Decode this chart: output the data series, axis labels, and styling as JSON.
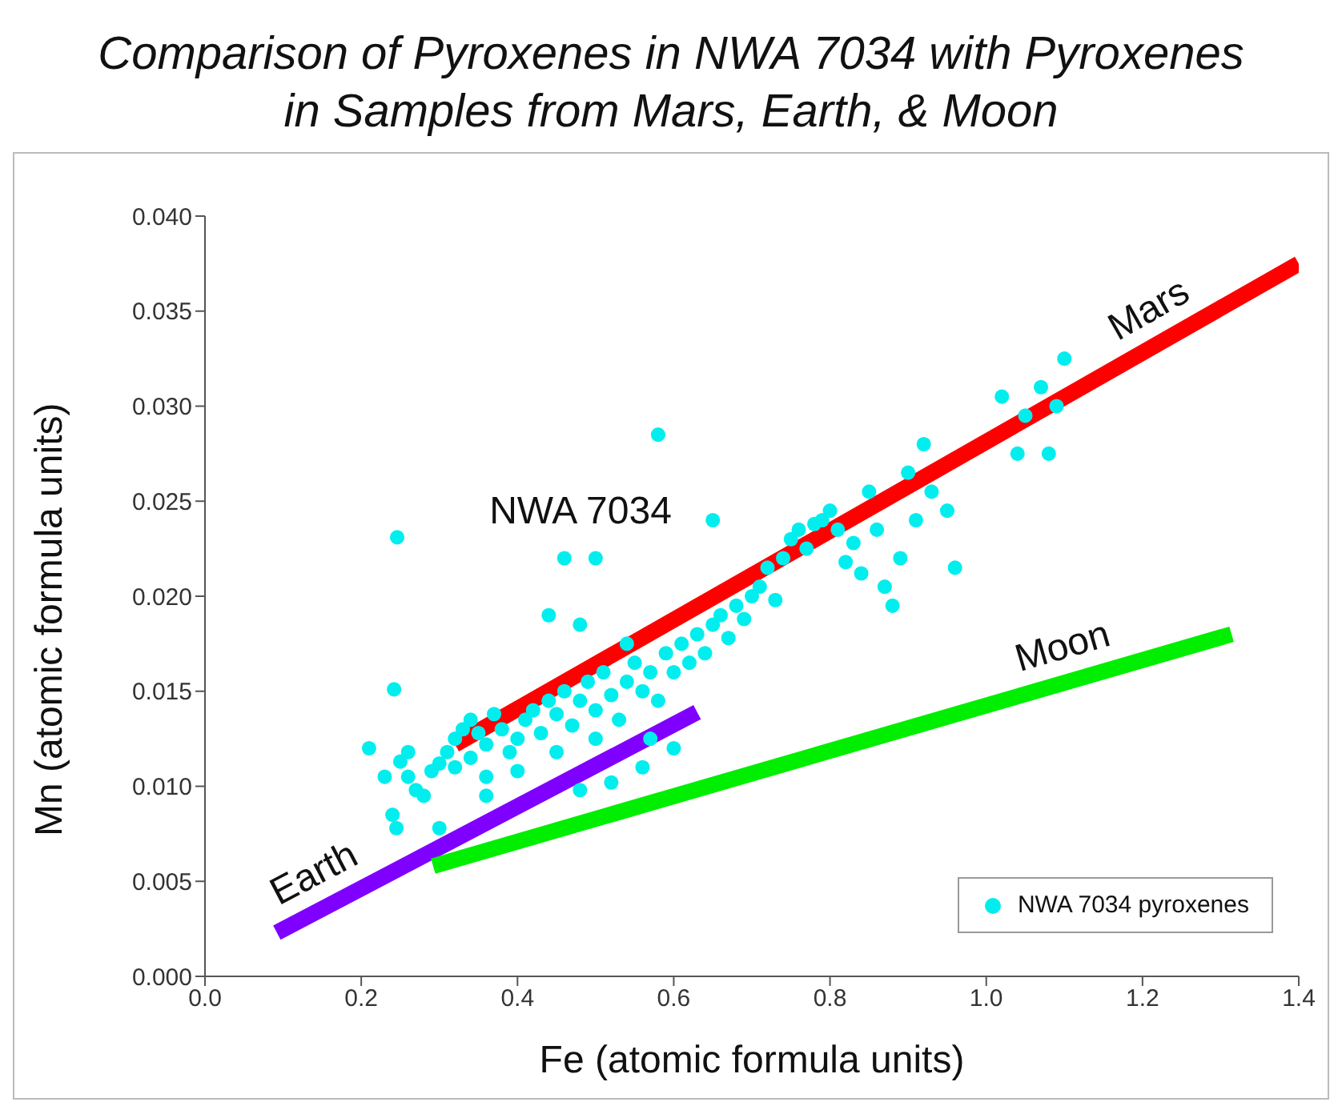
{
  "chart_data": {
    "type": "scatter",
    "title": "Comparison of Pyroxenes in NWA 7034 with Pyroxenes in Samples from Mars, Earth, & Moon",
    "xlabel": "Fe (atomic formula units)",
    "ylabel": "Mn (atomic formula units)",
    "xlim": [
      0,
      1.4
    ],
    "ylim": [
      0,
      0.04
    ],
    "xticks": [
      {
        "value": 0,
        "label": "0.0"
      },
      0.2,
      0.4,
      0.6,
      0.8,
      {
        "value": 1,
        "label": "1.0"
      },
      1.2,
      1.4
    ],
    "yticks": [
      {
        "value": 0,
        "label": "0.000"
      },
      0.005,
      {
        "value": 0.01,
        "label": "0.010"
      },
      0.015,
      {
        "value": 0.02,
        "label": "0.020"
      },
      0.025,
      {
        "value": 0.03,
        "label": "0.030"
      },
      0.035,
      {
        "value": 0.04,
        "label": "0.040"
      }
    ],
    "grid": false,
    "legend": "bottom right",
    "marker": "circle",
    "series": [
      {
        "type": "line",
        "marker": "none",
        "color": "#ff0000",
        "x": [
          0.32,
          1.4
        ],
        "values": [
          0.0122,
          0.0375
        ]
      },
      {
        "type": "line",
        "marker": "none",
        "color": "#7f00ff",
        "x": [
          0.092,
          0.63
        ],
        "values": [
          0.0023,
          0.0139
        ]
      },
      {
        "type": "line",
        "marker": "none",
        "color": "#00ee00",
        "x": [
          0.292,
          1.314
        ],
        "values": [
          0.0058,
          0.018
        ]
      },
      {
        "type": "scatter",
        "name": "NWA 7034 pyroxenes",
        "color": "#00eeee",
        "x": [
          0.21,
          0.23,
          0.24,
          0.245,
          0.25,
          0.26,
          0.27,
          0.26,
          0.28,
          0.29,
          0.3,
          0.31,
          0.32,
          0.33,
          0.32,
          0.34,
          0.35,
          0.34,
          0.36,
          0.37,
          0.38,
          0.36,
          0.39,
          0.4,
          0.41,
          0.42,
          0.4,
          0.43,
          0.44,
          0.45,
          0.46,
          0.47,
          0.45,
          0.48,
          0.49,
          0.5,
          0.5,
          0.51,
          0.52,
          0.53,
          0.54,
          0.55,
          0.56,
          0.57,
          0.58,
          0.59,
          0.6,
          0.61,
          0.62,
          0.63,
          0.64,
          0.65,
          0.66,
          0.67,
          0.68,
          0.69,
          0.7,
          0.71,
          0.72,
          0.73,
          0.74,
          0.75,
          0.76,
          0.77,
          0.78,
          0.79,
          0.8,
          0.81,
          0.82,
          0.83,
          0.84,
          0.85,
          0.86,
          0.87,
          0.88,
          0.89,
          0.9,
          0.91,
          0.92,
          0.93,
          0.95,
          0.96,
          1.02,
          1.04,
          1.05,
          1.07,
          1.08,
          1.1,
          1.09,
          0.246,
          0.242,
          0.58,
          0.46,
          0.5,
          0.44,
          0.48,
          0.65,
          0.54,
          0.52,
          0.48,
          0.36,
          0.3,
          0.56,
          0.6,
          0.57
        ],
        "values": [
          0.012,
          0.0105,
          0.0085,
          0.0078,
          0.0113,
          0.0118,
          0.0098,
          0.0105,
          0.0095,
          0.0108,
          0.0112,
          0.0118,
          0.0125,
          0.013,
          0.011,
          0.0135,
          0.0128,
          0.0115,
          0.0122,
          0.0138,
          0.013,
          0.0105,
          0.0118,
          0.0125,
          0.0135,
          0.014,
          0.0108,
          0.0128,
          0.0145,
          0.0138,
          0.015,
          0.0132,
          0.0118,
          0.0145,
          0.0155,
          0.014,
          0.0125,
          0.016,
          0.0148,
          0.0135,
          0.0155,
          0.0165,
          0.015,
          0.016,
          0.0145,
          0.017,
          0.016,
          0.0175,
          0.0165,
          0.018,
          0.017,
          0.0185,
          0.019,
          0.0178,
          0.0195,
          0.0188,
          0.02,
          0.0205,
          0.0215,
          0.0198,
          0.022,
          0.023,
          0.0235,
          0.0225,
          0.0238,
          0.024,
          0.0245,
          0.0235,
          0.0218,
          0.0228,
          0.0212,
          0.0255,
          0.0235,
          0.0205,
          0.0195,
          0.022,
          0.0265,
          0.024,
          0.028,
          0.0255,
          0.0245,
          0.0215,
          0.0305,
          0.0275,
          0.0295,
          0.031,
          0.0275,
          0.0325,
          0.03,
          0.0231,
          0.0151,
          0.0285,
          0.022,
          0.022,
          0.019,
          0.0185,
          0.024,
          0.0175,
          0.0102,
          0.0098,
          0.0095,
          0.0078,
          0.011,
          0.012,
          0.0125
        ]
      }
    ],
    "annotations": [
      {
        "text": "Mars",
        "x": 1.23,
        "y": 0.0335
      },
      {
        "text": "Earth",
        "x": 0.16,
        "y": 0.0038
      },
      {
        "text": "Moon",
        "x": 1.11,
        "y": 0.0156
      },
      "NWA 7034"
    ]
  }
}
